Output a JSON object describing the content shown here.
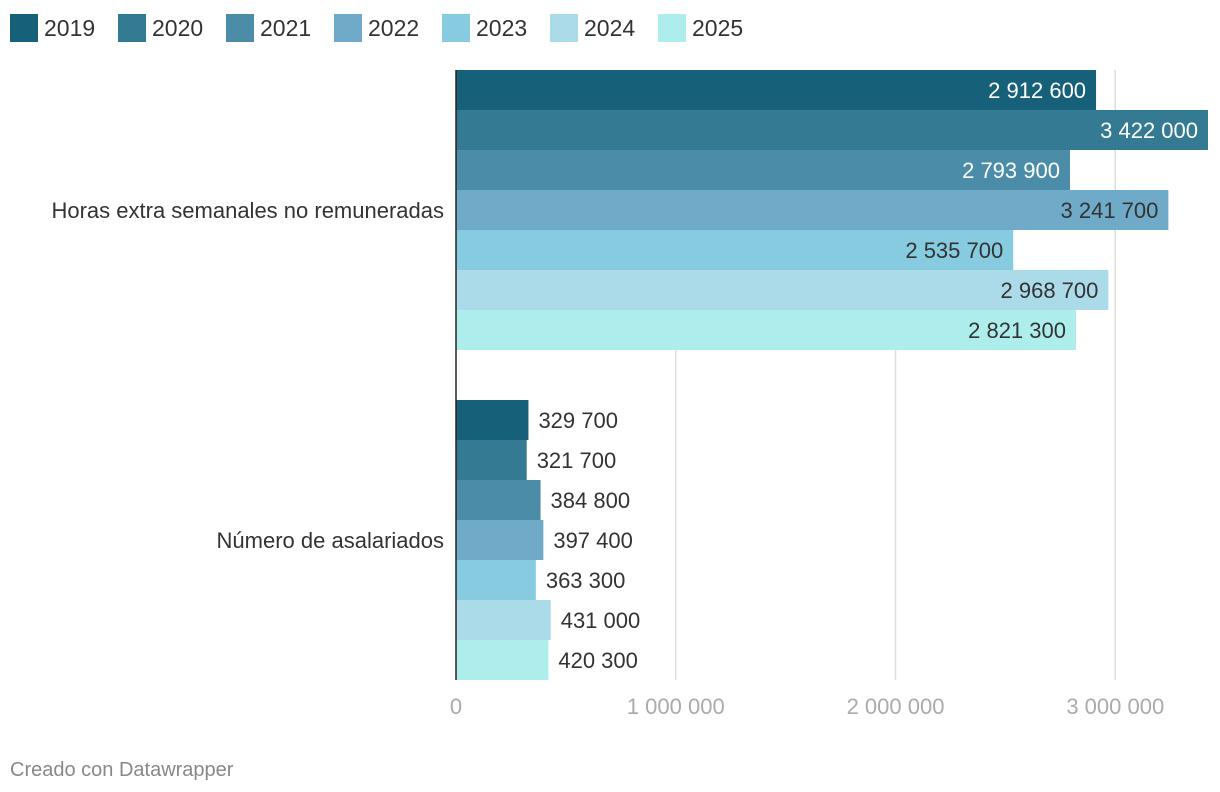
{
  "chart_data": {
    "type": "bar",
    "orientation": "horizontal",
    "categories": [
      "Horas extra semanales no remuneradas",
      "Número de asalariados"
    ],
    "series": [
      {
        "name": "2019",
        "color": "#17607a",
        "values": [
          2912600,
          329700
        ],
        "labels": [
          "2 912 600",
          "329 700"
        ]
      },
      {
        "name": "2020",
        "color": "#347a92",
        "values": [
          3422000,
          321700
        ],
        "labels": [
          "3 422 000",
          "321 700"
        ]
      },
      {
        "name": "2021",
        "color": "#4b8ca9",
        "values": [
          2793900,
          384800
        ],
        "labels": [
          "2 793 900",
          "384 800"
        ]
      },
      {
        "name": "2022",
        "color": "#6faac8",
        "values": [
          3241700,
          397400
        ],
        "labels": [
          "3 241 700",
          "397 400"
        ]
      },
      {
        "name": "2023",
        "color": "#86cbe0",
        "values": [
          2535700,
          363300
        ],
        "labels": [
          "2 535 700",
          "363 300"
        ]
      },
      {
        "name": "2024",
        "color": "#abdae9",
        "values": [
          2968700,
          431000
        ],
        "labels": [
          "2 968 700",
          "431 000"
        ]
      },
      {
        "name": "2025",
        "color": "#adeeec",
        "values": [
          2821300,
          420300
        ],
        "labels": [
          "2 821 300",
          "420 300"
        ]
      }
    ],
    "xlim": [
      0,
      3422000
    ],
    "xticks": [
      0,
      1000000,
      2000000,
      3000000
    ],
    "xtick_labels": [
      "0",
      "1 000 000",
      "2 000 000",
      "3 000 000"
    ],
    "grid": true,
    "legend_position": "top-left",
    "xlabel": "",
    "ylabel": ""
  },
  "footer": {
    "credit": "Creado con Datawrapper"
  }
}
